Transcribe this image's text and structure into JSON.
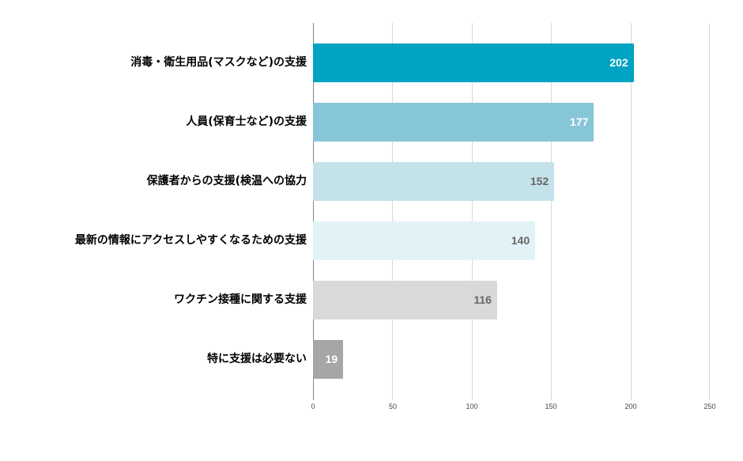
{
  "chart_data": {
    "type": "bar",
    "orientation": "horizontal",
    "title": "",
    "xlabel": "",
    "ylabel": "",
    "xlim": [
      0,
      250
    ],
    "grid": true,
    "legend": null,
    "categories": [
      "消毒・衛生用品(マスクなど)の支援",
      "人員(保育士など)の支援",
      "保護者からの支援(検温への協力",
      "最新の情報にアクセスしやすくなるための支援",
      "ワクチン接種に関する支援",
      "特に支援は必要ない"
    ],
    "values": [
      202,
      177,
      152,
      140,
      116,
      19
    ],
    "bar_colors": [
      "#00a3c2",
      "#86c6d6",
      "#c4e2ea",
      "#e3f2f6",
      "#d9d9d9",
      "#a6a6a6"
    ],
    "value_label_colors": [
      "#ffffff",
      "#ffffff",
      "#666666",
      "#666666",
      "#666666",
      "#ffffff"
    ],
    "x_ticks": [
      "0",
      "50",
      "100",
      "150",
      "200",
      "250"
    ]
  }
}
